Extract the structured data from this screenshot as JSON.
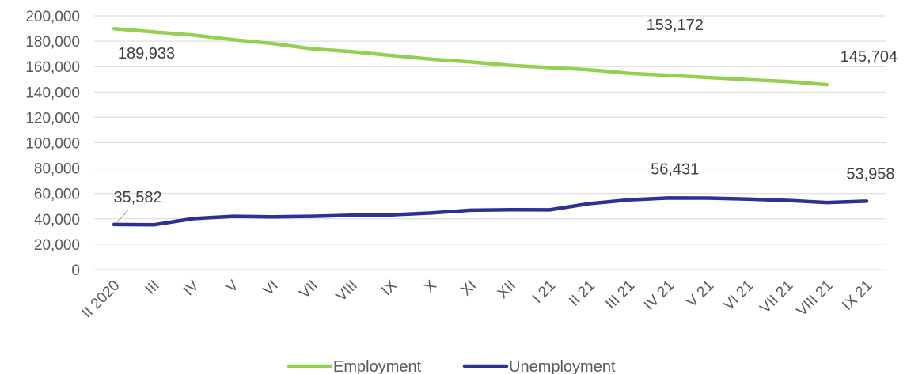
{
  "chart_data": {
    "type": "line",
    "categories": [
      "II 2020",
      "III",
      "IV",
      "V",
      "VI",
      "VII",
      "VIII",
      "IX",
      "X",
      "XI",
      "XII",
      "I 21",
      "II 21",
      "III 21",
      "IV 21",
      "V 21",
      "VI 21",
      "VII 21",
      "VIII 21",
      "IX 21"
    ],
    "series": [
      {
        "name": "Employment",
        "color": "#92d050",
        "values": [
          189933,
          187300,
          184800,
          181200,
          178200,
          174000,
          171800,
          168800,
          165900,
          163600,
          161000,
          159200,
          157500,
          154700,
          153172,
          151400,
          149700,
          148200,
          145704,
          null
        ]
      },
      {
        "name": "Unemployment",
        "color": "#2e3192",
        "values": [
          35582,
          35300,
          40200,
          42000,
          41600,
          42000,
          42800,
          43200,
          44600,
          46800,
          47200,
          47100,
          52000,
          55000,
          56431,
          56400,
          55600,
          54500,
          52900,
          53958
        ]
      }
    ],
    "data_labels": [
      {
        "series": 0,
        "index": 0,
        "text": "189,933"
      },
      {
        "series": 0,
        "index": 14,
        "text": "153,172"
      },
      {
        "series": 0,
        "index": 18,
        "text": "145,704"
      },
      {
        "series": 1,
        "index": 0,
        "text": "35,582"
      },
      {
        "series": 1,
        "index": 14,
        "text": "56,431"
      },
      {
        "series": 1,
        "index": 19,
        "text": "53,958"
      }
    ],
    "yticks": [
      "0",
      "20,000",
      "40,000",
      "60,000",
      "80,000",
      "100,000",
      "120,000",
      "140,000",
      "160,000",
      "180,000",
      "200,000"
    ],
    "ylim": [
      0,
      200000
    ],
    "grid": true,
    "legend_position": "bottom"
  }
}
